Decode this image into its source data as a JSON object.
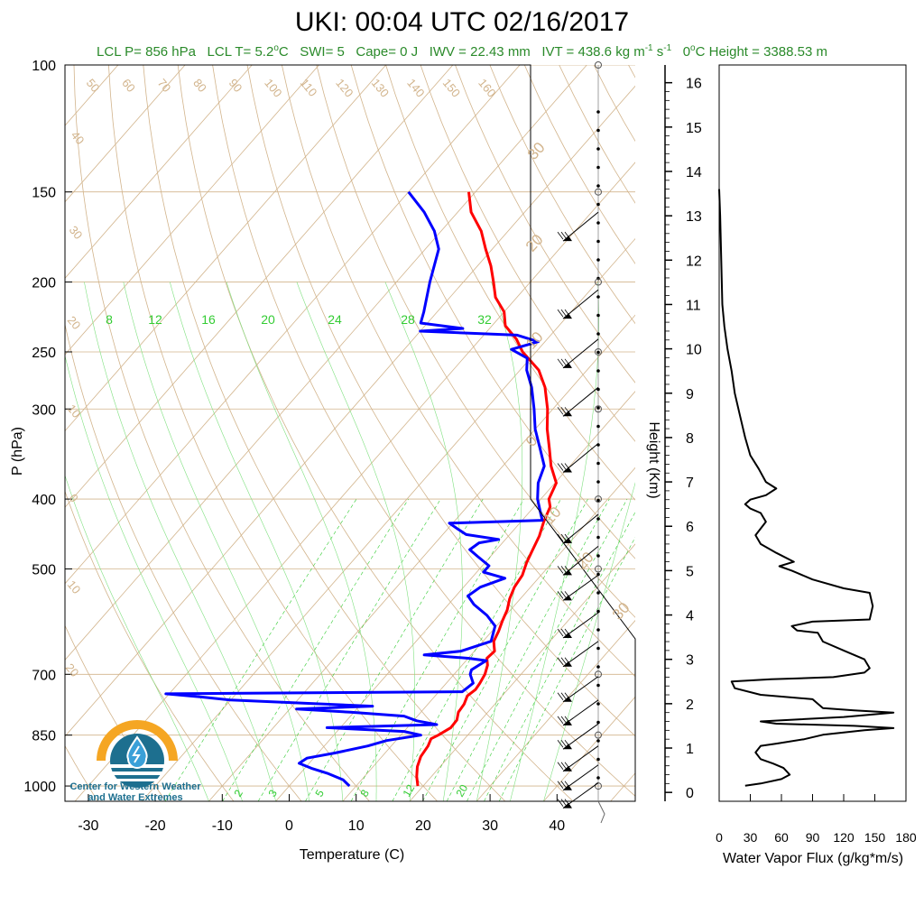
{
  "title": "UKI: 00:04 UTC 02/16/2017",
  "subtitle": {
    "lcl_p": "LCL P= 856 hPa",
    "lcl_t_pre": "LCL T= 5.2",
    "lcl_t_unit": "C",
    "deg": "o",
    "swi": "SWI= 5",
    "cape": "Cape= 0 J",
    "iwv": "IWV = 22.43 mm",
    "ivt_pre": "IVT = 438.6 kg m",
    "ivt_m_exp": "-1",
    "ivt_s": " s",
    "ivt_s_exp": "-1",
    "zero_pre": "0",
    "zero_post": "C Height = 3388.53 m"
  },
  "logo": {
    "line1": "Center for Western Weather",
    "line2": "and Water Extremes",
    "colors": {
      "orange": "#f5a623",
      "teal": "#1d6f8f",
      "blue": "#3aa0d8"
    }
  },
  "colors": {
    "temperature": "#ff0000",
    "dewpoint": "#0000ff",
    "isotherm": "#d2b48c",
    "mixing_ratio": "#33cc33",
    "flux": "#000000"
  },
  "chart_data": [
    {
      "type": "line",
      "name": "skew-t",
      "xlabel": "Temperature (C)",
      "ylabel": "P (hPa)",
      "x_ticks": [
        -30,
        -20,
        -10,
        0,
        10,
        20,
        30,
        40
      ],
      "y_ticks": [
        100,
        150,
        200,
        250,
        300,
        400,
        500,
        700,
        850,
        1000
      ],
      "y_scale": "log",
      "isotherm_labels": [
        50,
        60,
        70,
        80,
        90,
        100,
        110,
        120,
        130,
        140,
        150,
        160
      ],
      "left_isotherm_labels": [
        40,
        30,
        20,
        10,
        0,
        10,
        20
      ],
      "right_isotherm_labels": [
        30,
        20,
        10,
        0,
        10,
        20,
        30
      ],
      "mixing_ratio_labels_top": [
        8,
        12,
        16,
        20,
        24,
        28,
        32
      ],
      "mixing_ratio_labels_bottom": [
        2,
        3,
        5,
        8,
        12,
        20
      ],
      "series": [
        {
          "key": "temperature",
          "points": [
            [
              1000,
              19.2
            ],
            [
              970,
              17.8
            ],
            [
              940,
              16.6
            ],
            [
              910,
              15.8
            ],
            [
              880,
              15.5
            ],
            [
              860,
              15.0
            ],
            [
              850,
              15.6
            ],
            [
              830,
              16.5
            ],
            [
              810,
              16.4
            ],
            [
              790,
              15.6
            ],
            [
              770,
              15.4
            ],
            [
              750,
              14.8
            ],
            [
              735,
              15.2
            ],
            [
              720,
              15.0
            ],
            [
              700,
              14.6
            ],
            [
              680,
              13.8
            ],
            [
              665,
              12.8
            ],
            [
              650,
              13.0
            ],
            [
              640,
              12.3
            ],
            [
              630,
              11.6
            ],
            [
              610,
              11.0
            ],
            [
              590,
              10.2
            ],
            [
              570,
              9.5
            ],
            [
              550,
              8.4
            ],
            [
              530,
              7.6
            ],
            [
              510,
              7.2
            ],
            [
              490,
              6.2
            ],
            [
              470,
              5.4
            ],
            [
              450,
              4.6
            ],
            [
              430,
              3.4
            ],
            [
              410,
              2.4
            ],
            [
              400,
              1.2
            ],
            [
              380,
              0.2
            ],
            [
              360,
              -2.8
            ],
            [
              340,
              -5.4
            ],
            [
              320,
              -8.2
            ],
            [
              300,
              -10.8
            ],
            [
              280,
              -14.0
            ],
            [
              265,
              -17.2
            ],
            [
              250,
              -22.0
            ],
            [
              240,
              -24.6
            ],
            [
              230,
              -28.0
            ],
            [
              220,
              -30.0
            ],
            [
              210,
              -33.2
            ],
            [
              200,
              -35.5
            ],
            [
              190,
              -38.0
            ],
            [
              180,
              -41.0
            ],
            [
              170,
              -44.0
            ],
            [
              160,
              -48.0
            ],
            [
              150,
              -51.0
            ]
          ]
        },
        {
          "key": "dewpoint",
          "points": [
            [
              1000,
              9.0
            ],
            [
              980,
              7.2
            ],
            [
              960,
              4.0
            ],
            [
              945,
              1.0
            ],
            [
              930,
              -1.5
            ],
            [
              915,
              -1.0
            ],
            [
              900,
              2.5
            ],
            [
              880,
              6.5
            ],
            [
              865,
              8.6
            ],
            [
              850,
              13.0
            ],
            [
              840,
              10.0
            ],
            [
              830,
              -2.0
            ],
            [
              822,
              14.0
            ],
            [
              812,
              10.5
            ],
            [
              800,
              8.0
            ],
            [
              790,
              -0.5
            ],
            [
              782,
              -9.0
            ],
            [
              775,
              2.0
            ],
            [
              760,
              -20.0
            ],
            [
              752,
              -25.0
            ],
            [
              745,
              -30.5
            ],
            [
              740,
              13.5
            ],
            [
              720,
              14.0
            ],
            [
              700,
              12.4
            ],
            [
              690,
              12.0
            ],
            [
              670,
              13.0
            ],
            [
              665,
              10.0
            ],
            [
              658,
              3.0
            ],
            [
              650,
              8.0
            ],
            [
              630,
              11.2
            ],
            [
              600,
              9.8
            ],
            [
              580,
              7.2
            ],
            [
              560,
              3.8
            ],
            [
              545,
              1.8
            ],
            [
              530,
              2.5
            ],
            [
              515,
              5.0
            ],
            [
              505,
              1.0
            ],
            [
              495,
              1.0
            ],
            [
              480,
              -2.0
            ],
            [
              470,
              -4.0
            ],
            [
              460,
              -3.5
            ],
            [
              455,
              -1.0
            ],
            [
              448,
              -6.5
            ],
            [
              440,
              -8.5
            ],
            [
              432,
              -10.5
            ],
            [
              428,
              3.0
            ],
            [
              420,
              2.0
            ],
            [
              400,
              -0.5
            ],
            [
              380,
              -2.5
            ],
            [
              360,
              -3.8
            ],
            [
              340,
              -6.8
            ],
            [
              320,
              -10.0
            ],
            [
              300,
              -12.8
            ],
            [
              280,
              -16.0
            ],
            [
              265,
              -19.0
            ],
            [
              255,
              -20.5
            ],
            [
              248,
              -24.0
            ],
            [
              242,
              -21.0
            ],
            [
              237,
              -25.0
            ],
            [
              234,
              -40.0
            ],
            [
              232,
              -34.0
            ],
            [
              228,
              -41.0
            ],
            [
              220,
              -42.0
            ],
            [
              200,
              -45.0
            ],
            [
              180,
              -48.0
            ],
            [
              170,
              -51.0
            ],
            [
              160,
              -55.0
            ],
            [
              150,
              -60.0
            ]
          ]
        }
      ],
      "wind_barbs_pressure": [
        990,
        935,
        880,
        820,
        760,
        705,
        630,
        575,
        510,
        465,
        420,
        335,
        280,
        240,
        205,
        160
      ]
    },
    {
      "type": "line",
      "name": "water-vapor-flux",
      "xlabel": "Water Vapor Flux (g/kg*m/s)",
      "ylabel": "Height (Km)",
      "x_ticks": [
        0,
        30,
        60,
        90,
        120,
        150,
        180
      ],
      "y_ticks": [
        0,
        1,
        2,
        3,
        4,
        5,
        6,
        7,
        8,
        9,
        10,
        11,
        12,
        13,
        14,
        15,
        16
      ],
      "xlim": [
        0,
        180
      ],
      "ylim": [
        -0.2,
        16.4
      ],
      "points": [
        [
          25,
          0.15
        ],
        [
          40,
          0.2
        ],
        [
          60,
          0.3
        ],
        [
          68,
          0.4
        ],
        [
          62,
          0.55
        ],
        [
          52,
          0.65
        ],
        [
          40,
          0.75
        ],
        [
          35,
          0.9
        ],
        [
          40,
          1.05
        ],
        [
          55,
          1.1
        ],
        [
          82,
          1.2
        ],
        [
          100,
          1.3
        ],
        [
          140,
          1.4
        ],
        [
          168,
          1.45
        ],
        [
          130,
          1.5
        ],
        [
          55,
          1.55
        ],
        [
          40,
          1.6
        ],
        [
          120,
          1.7
        ],
        [
          168,
          1.8
        ],
        [
          130,
          1.85
        ],
        [
          100,
          1.9
        ],
        [
          95,
          2.0
        ],
        [
          90,
          2.1
        ],
        [
          40,
          2.2
        ],
        [
          15,
          2.35
        ],
        [
          12,
          2.5
        ],
        [
          50,
          2.55
        ],
        [
          110,
          2.6
        ],
        [
          140,
          2.7
        ],
        [
          145,
          2.8
        ],
        [
          140,
          3.0
        ],
        [
          120,
          3.2
        ],
        [
          100,
          3.4
        ],
        [
          95,
          3.6
        ],
        [
          75,
          3.65
        ],
        [
          70,
          3.75
        ],
        [
          90,
          3.85
        ],
        [
          145,
          3.9
        ],
        [
          148,
          4.2
        ],
        [
          145,
          4.5
        ],
        [
          120,
          4.6
        ],
        [
          90,
          4.8
        ],
        [
          70,
          5.0
        ],
        [
          58,
          5.1
        ],
        [
          72,
          5.2
        ],
        [
          55,
          5.4
        ],
        [
          40,
          5.6
        ],
        [
          35,
          5.8
        ],
        [
          45,
          6.1
        ],
        [
          40,
          6.3
        ],
        [
          30,
          6.4
        ],
        [
          25,
          6.5
        ],
        [
          30,
          6.6
        ],
        [
          45,
          6.7
        ],
        [
          55,
          6.85
        ],
        [
          45,
          7.0
        ],
        [
          38,
          7.3
        ],
        [
          30,
          7.6
        ],
        [
          25,
          8.0
        ],
        [
          20,
          8.5
        ],
        [
          15,
          9.0
        ],
        [
          12,
          9.5
        ],
        [
          8,
          10.0
        ],
        [
          5,
          10.5
        ],
        [
          3,
          11.0
        ],
        [
          2,
          12.0
        ],
        [
          1,
          13.0
        ],
        [
          0,
          13.6
        ]
      ]
    }
  ]
}
